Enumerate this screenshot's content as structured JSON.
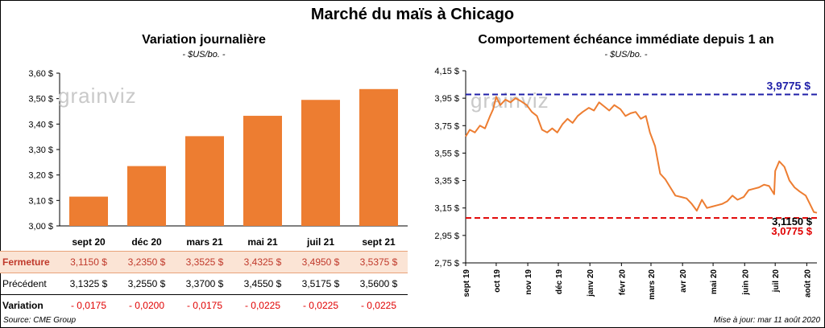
{
  "title": "Marché du maïs à Chicago",
  "watermark": "grainviz",
  "footer": {
    "source": "Source: CME Group",
    "update": "Mise à jour: mar 11 août 2020"
  },
  "colors": {
    "bar": "#ed7d31",
    "line": "#ed7d31",
    "high_line": "#1f1fa8",
    "low_line": "#e00000",
    "current_label": "#000000",
    "close_row_bg": "#fbe4d5"
  },
  "chart_data": [
    {
      "type": "bar",
      "title": "Variation  journalière",
      "subtitle": "- $US/bo. -",
      "categories": [
        "sept 20",
        "déc 20",
        "mars 21",
        "mai 21",
        "juil 21",
        "sept 21"
      ],
      "values": [
        3.115,
        3.235,
        3.3525,
        3.4325,
        3.495,
        3.5375
      ],
      "ylim": [
        3.0,
        3.6
      ],
      "yticks": [
        "3,00 $",
        "3,10 $",
        "3,20 $",
        "3,30 $",
        "3,40 $",
        "3,50 $",
        "3,60 $"
      ],
      "grid": false,
      "table": {
        "rows": [
          {
            "label": "Fermeture",
            "values": [
              "3,1150  $",
              "3,2350  $",
              "3,3525  $",
              "3,4325  $",
              "3,4950  $",
              "3,5375  $"
            ]
          },
          {
            "label": "Précédent",
            "values": [
              "3,1325  $",
              "3,2550  $",
              "3,3700  $",
              "3,4550  $",
              "3,5175  $",
              "3,5600  $"
            ]
          },
          {
            "label": "Variation",
            "values": [
              "- 0,0175",
              "- 0,0200",
              "- 0,0175",
              "- 0,0225",
              "- 0,0225",
              "- 0,0225"
            ]
          }
        ]
      }
    },
    {
      "type": "line",
      "title": "Comportement  échéance immédiate depuis 1 an",
      "subtitle": "- $US/bo. -",
      "x_ticks": [
        "sept 19",
        "oct 19",
        "nov 19",
        "déc 19",
        "janv 20",
        "févr 20",
        "mars 20",
        "avr 20",
        "mai 20",
        "juin 20",
        "juil 20",
        "août 20"
      ],
      "ylim": [
        2.75,
        4.15
      ],
      "yticks": [
        "2,75 $",
        "2,95 $",
        "3,15 $",
        "3,35 $",
        "3,55 $",
        "3,75 $",
        "3,95 $",
        "4,15 $"
      ],
      "grid": false,
      "series": [
        {
          "x": [
            "2019-09-01",
            "2019-09-05",
            "2019-09-10",
            "2019-09-15",
            "2019-09-20",
            "2019-09-25",
            "2019-09-28",
            "2019-10-01",
            "2019-10-05",
            "2019-10-10",
            "2019-10-15",
            "2019-10-20",
            "2019-10-25",
            "2019-10-31",
            "2019-11-05",
            "2019-11-10",
            "2019-11-15",
            "2019-11-20",
            "2019-11-25",
            "2019-11-30",
            "2019-12-05",
            "2019-12-10",
            "2019-12-15",
            "2019-12-20",
            "2019-12-25",
            "2019-12-31",
            "2020-01-05",
            "2020-01-10",
            "2020-01-15",
            "2020-01-20",
            "2020-01-25",
            "2020-01-31",
            "2020-02-05",
            "2020-02-10",
            "2020-02-15",
            "2020-02-20",
            "2020-02-25",
            "2020-02-29",
            "2020-03-05",
            "2020-03-10",
            "2020-03-15",
            "2020-03-20",
            "2020-03-25",
            "2020-03-31",
            "2020-04-05",
            "2020-04-10",
            "2020-04-15",
            "2020-04-20",
            "2020-04-25",
            "2020-04-30",
            "2020-05-05",
            "2020-05-10",
            "2020-05-15",
            "2020-05-20",
            "2020-05-25",
            "2020-05-31",
            "2020-06-05",
            "2020-06-10",
            "2020-06-15",
            "2020-06-20",
            "2020-06-25",
            "2020-06-30",
            "2020-07-01",
            "2020-07-05",
            "2020-07-10",
            "2020-07-15",
            "2020-07-20",
            "2020-07-25",
            "2020-07-31",
            "2020-08-04",
            "2020-08-08",
            "2020-08-11"
          ],
          "values": [
            3.67,
            3.72,
            3.7,
            3.75,
            3.73,
            3.82,
            3.87,
            3.96,
            3.9,
            3.94,
            3.92,
            3.95,
            3.93,
            3.9,
            3.85,
            3.82,
            3.72,
            3.7,
            3.73,
            3.7,
            3.76,
            3.8,
            3.77,
            3.82,
            3.85,
            3.88,
            3.86,
            3.92,
            3.89,
            3.86,
            3.9,
            3.87,
            3.82,
            3.84,
            3.85,
            3.8,
            3.82,
            3.7,
            3.6,
            3.4,
            3.36,
            3.3,
            3.24,
            3.23,
            3.22,
            3.18,
            3.13,
            3.21,
            3.15,
            3.16,
            3.17,
            3.18,
            3.2,
            3.24,
            3.21,
            3.23,
            3.28,
            3.29,
            3.3,
            3.32,
            3.31,
            3.25,
            3.42,
            3.49,
            3.45,
            3.35,
            3.3,
            3.27,
            3.24,
            3.18,
            3.12,
            3.115
          ]
        }
      ],
      "reference_lines": [
        {
          "value": 3.9775,
          "label": "3,9775 $",
          "style": "dashed"
        },
        {
          "value": 3.0775,
          "label": "3,0775 $",
          "style": "dashed"
        }
      ],
      "current_label": "3,1150 $"
    }
  ]
}
